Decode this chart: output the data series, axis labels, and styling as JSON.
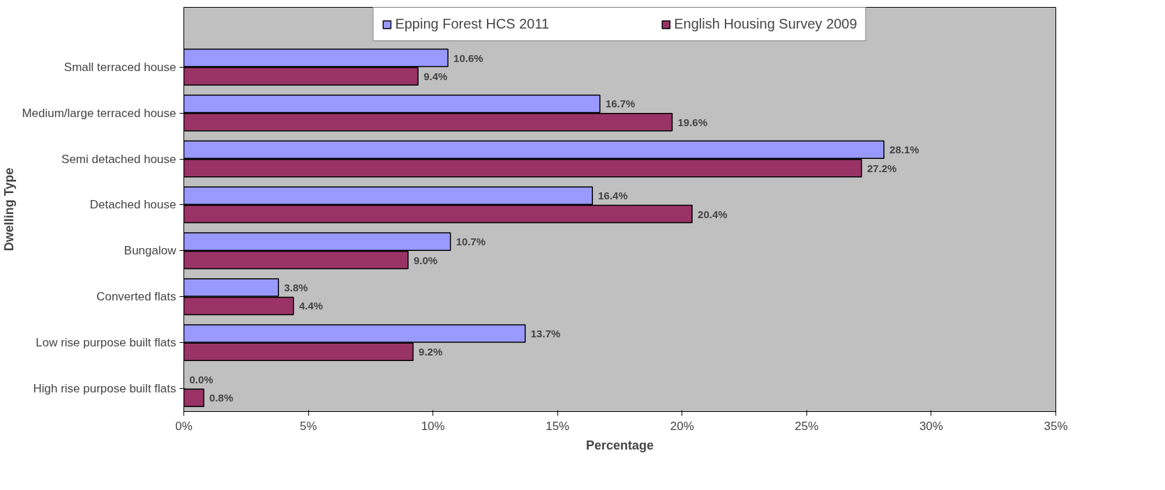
{
  "chart_data": {
    "type": "bar",
    "orientation": "horizontal",
    "xlabel": "Percentage",
    "ylabel": "Dwelling Type",
    "categories": [
      "Small terraced house",
      "Medium/large terraced house",
      "Semi detached house",
      "Detached house",
      "Bungalow",
      "Converted flats",
      "Low rise purpose built flats",
      "High rise purpose built flats"
    ],
    "series": [
      {
        "name": "Epping Forest HCS 2011",
        "color": "#9999ff",
        "values": [
          10.6,
          16.7,
          28.1,
          16.4,
          10.7,
          3.8,
          13.7,
          0.0
        ],
        "value_labels": [
          "10.6%",
          "16.7%",
          "28.1%",
          "16.4%",
          "10.7%",
          "3.8%",
          "13.7%",
          "0.0%"
        ]
      },
      {
        "name": "English Housing Survey 2009",
        "color": "#993366",
        "values": [
          9.4,
          19.6,
          27.2,
          20.4,
          9.0,
          4.4,
          9.2,
          0.8
        ],
        "value_labels": [
          "9.4%",
          "19.6%",
          "27.2%",
          "20.4%",
          "9.0%",
          "4.4%",
          "9.2%",
          "0.8%"
        ]
      }
    ],
    "xlim": [
      0,
      35
    ],
    "xticks": [
      {
        "value": 0,
        "label": "0%"
      },
      {
        "value": 5,
        "label": "5%"
      },
      {
        "value": 10,
        "label": "10%"
      },
      {
        "value": 15,
        "label": "15%"
      },
      {
        "value": 20,
        "label": "20%"
      },
      {
        "value": 25,
        "label": "25%"
      },
      {
        "value": 30,
        "label": "30%"
      },
      {
        "value": 35,
        "label": "35%"
      }
    ],
    "legend": "top",
    "grid": false
  }
}
